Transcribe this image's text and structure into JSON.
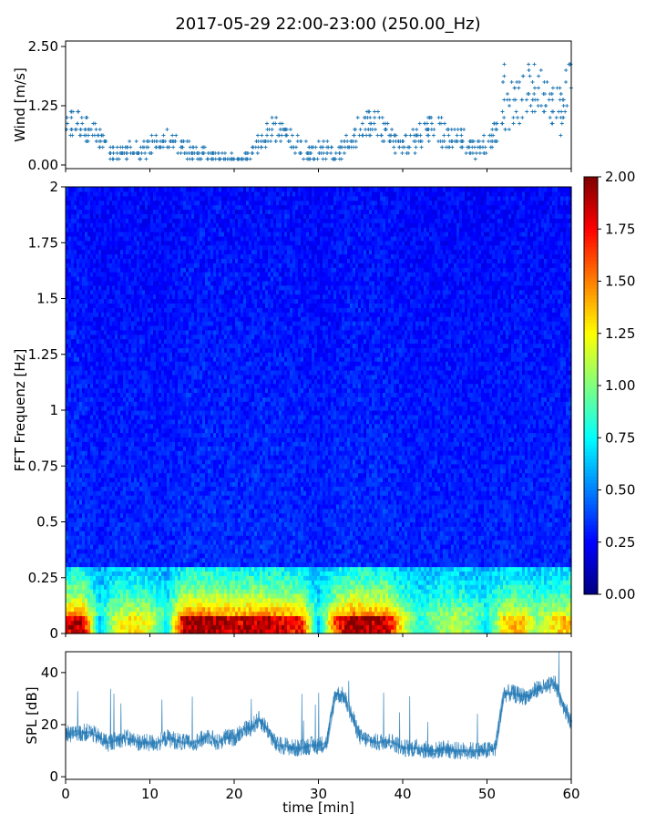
{
  "title": "2017-05-29 22:00-23:00 (250.00_Hz)",
  "chart_data": [
    {
      "type": "scatter",
      "panel": "wind",
      "ylabel": "Wind [m/s]",
      "xlim": [
        0,
        60
      ],
      "ylim": [
        0,
        2.5
      ],
      "yticks": [
        "0.00",
        "1.25",
        "2.50"
      ],
      "marker": "+",
      "color": "#1f77b4",
      "x": [
        0,
        1,
        2,
        3,
        4,
        5,
        6,
        7,
        8,
        9,
        10,
        11,
        12,
        13,
        14,
        15,
        16,
        17,
        18,
        19,
        20,
        21,
        22,
        23,
        24,
        25,
        26,
        27,
        28,
        29,
        30,
        31,
        32,
        33,
        34,
        35,
        36,
        37,
        38,
        39,
        40,
        41,
        42,
        43,
        44,
        45,
        46,
        47,
        48,
        49,
        50,
        51,
        52,
        53,
        54,
        55,
        56,
        57,
        58,
        59,
        60
      ],
      "y": [
        0.7,
        0.8,
        1.0,
        0.7,
        0.5,
        0.3,
        0.2,
        0.2,
        0.3,
        0.2,
        0.4,
        0.5,
        0.5,
        0.5,
        0.4,
        0.3,
        0.2,
        0.2,
        0.15,
        0.15,
        0.15,
        0.15,
        0.2,
        0.5,
        0.7,
        0.8,
        0.7,
        0.5,
        0.3,
        0.2,
        0.3,
        0.3,
        0.2,
        0.4,
        0.6,
        0.8,
        1.0,
        0.9,
        0.7,
        0.5,
        0.4,
        0.5,
        0.6,
        0.9,
        0.8,
        0.6,
        0.5,
        0.6,
        0.4,
        0.3,
        0.5,
        0.6,
        1.2,
        1.3,
        1.5,
        1.6,
        1.7,
        1.6,
        1.4,
        1.0,
        1.8
      ],
      "y_range_min": [
        0.4,
        0.5,
        0.6,
        0.4,
        0.25,
        0.1,
        0.1,
        0.1,
        0.1,
        0.1,
        0.2,
        0.3,
        0.3,
        0.3,
        0.2,
        0.1,
        0.1,
        0.1,
        0.1,
        0.1,
        0.1,
        0.1,
        0.1,
        0.3,
        0.4,
        0.5,
        0.4,
        0.3,
        0.1,
        0.05,
        0.1,
        0.1,
        0.1,
        0.2,
        0.3,
        0.5,
        0.6,
        0.6,
        0.4,
        0.3,
        0.2,
        0.2,
        0.3,
        0.5,
        0.4,
        0.3,
        0.3,
        0.3,
        0.2,
        0.15,
        0.3,
        0.4,
        0.7,
        0.8,
        0.9,
        1.0,
        1.1,
        1.1,
        0.8,
        0.6,
        1.2
      ],
      "y_range_max": [
        1.0,
        1.3,
        1.1,
        1.0,
        0.8,
        0.5,
        0.4,
        0.4,
        0.5,
        0.4,
        0.6,
        0.6,
        0.7,
        0.6,
        0.6,
        0.5,
        0.4,
        0.3,
        0.25,
        0.25,
        0.2,
        0.2,
        0.35,
        0.7,
        0.9,
        1.0,
        0.9,
        0.7,
        0.6,
        0.4,
        0.5,
        0.5,
        0.4,
        0.6,
        0.8,
        1.1,
        1.2,
        1.2,
        0.9,
        0.7,
        0.6,
        0.7,
        0.9,
        1.1,
        1.2,
        0.9,
        0.8,
        0.8,
        0.6,
        0.5,
        0.7,
        0.9,
        2.2,
        1.9,
        1.7,
        2.4,
        2.0,
        2.1,
        1.6,
        1.9,
        2.5
      ]
    },
    {
      "type": "heatmap",
      "panel": "spectrogram",
      "ylabel": "FFT Frequenz [Hz]",
      "xlim": [
        0,
        60
      ],
      "ylim": [
        0,
        2
      ],
      "yticks": [
        "0",
        "0.25",
        "0.5",
        "0.75",
        "1",
        "1.25",
        "1.5",
        "1.75",
        "2"
      ],
      "colormap": "jet",
      "colorbar": {
        "min": 0,
        "max": 2,
        "ticks": [
          "0.00",
          "0.25",
          "0.50",
          "0.75",
          "1.00",
          "1.25",
          "1.50",
          "1.75",
          "2.00"
        ]
      },
      "time_minutes": [
        0,
        2,
        4,
        6,
        8,
        10,
        12,
        14,
        16,
        18,
        20,
        22,
        24,
        26,
        28,
        30,
        32,
        34,
        36,
        38,
        40,
        42,
        44,
        46,
        48,
        50,
        52,
        54,
        56,
        58,
        60
      ],
      "low_freq_intensity": [
        1.8,
        1.9,
        0.6,
        1.2,
        1.3,
        1.2,
        0.7,
        1.9,
        2.0,
        1.9,
        1.8,
        1.9,
        1.9,
        1.8,
        1.7,
        0.6,
        1.6,
        2.0,
        1.9,
        1.9,
        1.2,
        0.8,
        1.0,
        1.1,
        1.0,
        0.7,
        1.3,
        1.4,
        1.0,
        1.3,
        1.4
      ],
      "note": ""
    },
    {
      "type": "line",
      "panel": "spl",
      "ylabel": "SPL [dB]",
      "xlabel": "time [min]",
      "xlim": [
        0,
        60
      ],
      "ylim": [
        -1,
        48
      ],
      "yticks": [
        "0",
        "20",
        "40"
      ],
      "xticks": [
        "0",
        "10",
        "20",
        "30",
        "40",
        "50",
        "60"
      ],
      "color": "#1f77b4",
      "x": [
        0,
        1,
        2,
        3,
        4,
        5,
        6,
        7,
        8,
        9,
        10,
        11,
        12,
        13,
        14,
        15,
        16,
        17,
        18,
        19,
        20,
        21,
        22,
        23,
        24,
        25,
        26,
        27,
        28,
        29,
        30,
        31,
        32,
        33,
        34,
        35,
        36,
        37,
        38,
        39,
        40,
        41,
        42,
        43,
        44,
        45,
        46,
        47,
        48,
        49,
        50,
        51,
        52,
        53,
        54,
        55,
        56,
        57,
        58,
        59,
        60
      ],
      "y": [
        17,
        16,
        17,
        17,
        15,
        13,
        14,
        15,
        14,
        13,
        13,
        13,
        15,
        14,
        13,
        13,
        14,
        16,
        13,
        15,
        15,
        18,
        19,
        22,
        18,
        12,
        12,
        11,
        11,
        12,
        12,
        13,
        32,
        31,
        23,
        15,
        14,
        13,
        14,
        13,
        11,
        11,
        11,
        10,
        10,
        11,
        10,
        10,
        10,
        10,
        10,
        11,
        32,
        32,
        31,
        31,
        34,
        34,
        36,
        28,
        21
      ]
    }
  ]
}
